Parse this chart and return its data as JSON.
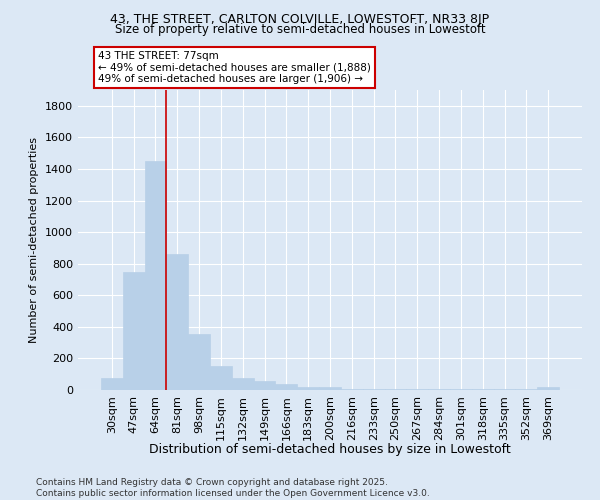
{
  "title1": "43, THE STREET, CARLTON COLVILLE, LOWESTOFT, NR33 8JP",
  "title2": "Size of property relative to semi-detached houses in Lowestoft",
  "xlabel": "Distribution of semi-detached houses by size in Lowestoft",
  "ylabel": "Number of semi-detached properties",
  "categories": [
    "30sqm",
    "47sqm",
    "64sqm",
    "81sqm",
    "98sqm",
    "115sqm",
    "132sqm",
    "149sqm",
    "166sqm",
    "183sqm",
    "200sqm",
    "216sqm",
    "233sqm",
    "250sqm",
    "267sqm",
    "284sqm",
    "301sqm",
    "318sqm",
    "335sqm",
    "352sqm",
    "369sqm"
  ],
  "values": [
    75,
    750,
    1450,
    860,
    355,
    155,
    75,
    55,
    38,
    20,
    16,
    5,
    5,
    5,
    5,
    5,
    5,
    5,
    5,
    5,
    16
  ],
  "bar_color": "#b8d0e8",
  "bar_edge_color": "#b8d0e8",
  "vline_x_index": 3,
  "vline_color": "#cc0000",
  "annotation_title": "43 THE STREET: 77sqm",
  "annotation_line1": "← 49% of semi-detached houses are smaller (1,888)",
  "annotation_line2": "49% of semi-detached houses are larger (1,906) →",
  "annotation_box_color": "white",
  "annotation_box_edge_color": "#cc0000",
  "ylim": [
    0,
    1900
  ],
  "yticks": [
    0,
    200,
    400,
    600,
    800,
    1000,
    1200,
    1400,
    1600,
    1800
  ],
  "footnote1": "Contains HM Land Registry data © Crown copyright and database right 2025.",
  "footnote2": "Contains public sector information licensed under the Open Government Licence v3.0.",
  "background_color": "#dce8f5",
  "plot_background_color": "#dce8f5",
  "grid_color": "#ffffff",
  "spine_color": "#aaaaaa"
}
